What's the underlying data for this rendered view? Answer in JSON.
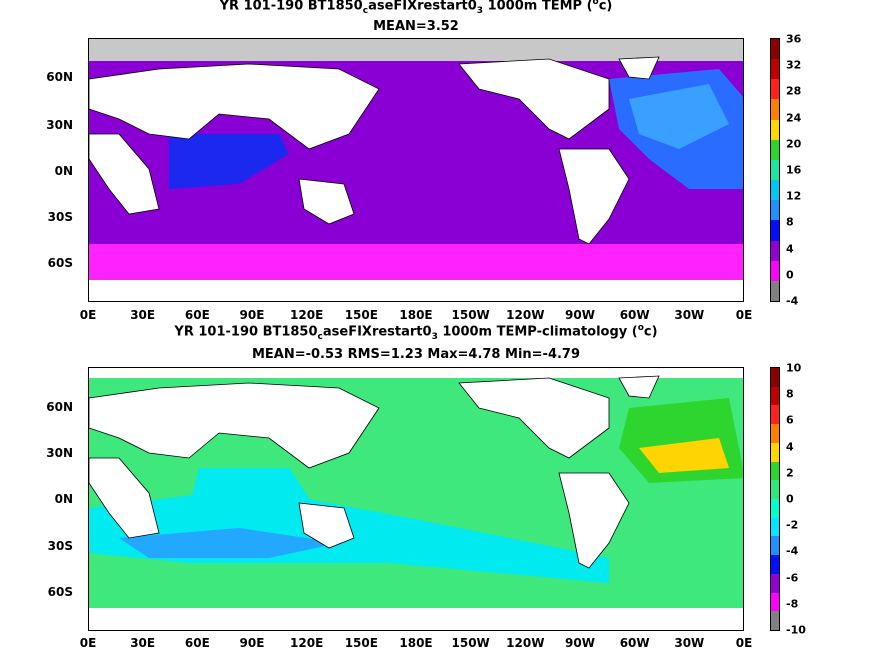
{
  "panels": [
    {
      "title_line1_pre": "YR 101-190 BT1850",
      "title_line1_sub1": "c",
      "title_line1_mid": "aseFIXrestart0",
      "title_line1_sub2": "3",
      "title_line1_post": " 1000m TEMP (",
      "title_line1_sup": "o",
      "title_line1_end": "c)",
      "title_line2": "MEAN=3.52",
      "colorbar": {
        "labels": [
          "36",
          "32",
          "28",
          "24",
          "20",
          "16",
          "12",
          "8",
          "4",
          "0",
          "-4"
        ],
        "colors": [
          "#8b0000",
          "#c00000",
          "#ff2020",
          "#ff7f00",
          "#ffd700",
          "#2fd52f",
          "#1ee6a0",
          "#00c8f0",
          "#1e90ff",
          "#0010ff",
          "#9400d3",
          "#ff00ff",
          "#808080"
        ]
      },
      "fields": {
        "ocean_main": "#8a00d4",
        "deep_south": "#ff22ff",
        "indian": "#1a28f0",
        "atlantic_north": "#2a6cff",
        "atlantic_core": "#3aa0ff",
        "arctic": "#c8c8c8"
      }
    },
    {
      "title_line1_pre": "YR 101-190 BT1850",
      "title_line1_sub1": "c",
      "title_line1_mid": "aseFIXrestart0",
      "title_line1_sub2": "3",
      "title_line1_post": " 1000m TEMP-climatology (",
      "title_line1_sup": "o",
      "title_line1_end": "c)",
      "title_line2": "MEAN=-0.53   RMS=1.23   Max=4.78   Min=-4.79",
      "colorbar": {
        "labels": [
          "10",
          "8",
          "6",
          "4",
          "2",
          "0",
          "-2",
          "-4",
          "-6",
          "-8",
          "-10"
        ],
        "colors": [
          "#8b0000",
          "#c00000",
          "#ff2020",
          "#ff7f00",
          "#ffd700",
          "#2fd52f",
          "#2ee87a",
          "#00ffcc",
          "#00e8ff",
          "#1e90ff",
          "#0010ff",
          "#9400d3",
          "#ff00ff",
          "#808080"
        ]
      },
      "fields": {
        "ocean_main": "#3ee87c",
        "band_south": "#00eaf0",
        "band_mid": "#22a8ff",
        "atlantic": "#ffd400",
        "atlantic_green": "#2ed52e"
      }
    }
  ],
  "axes": {
    "lat_labels": [
      "60N",
      "30N",
      "0N",
      "30S",
      "60S"
    ],
    "lon_labels": [
      "0E",
      "30E",
      "60E",
      "90E",
      "120E",
      "150E",
      "180E",
      "150W",
      "120W",
      "90W",
      "60W",
      "30W",
      "0E"
    ]
  }
}
